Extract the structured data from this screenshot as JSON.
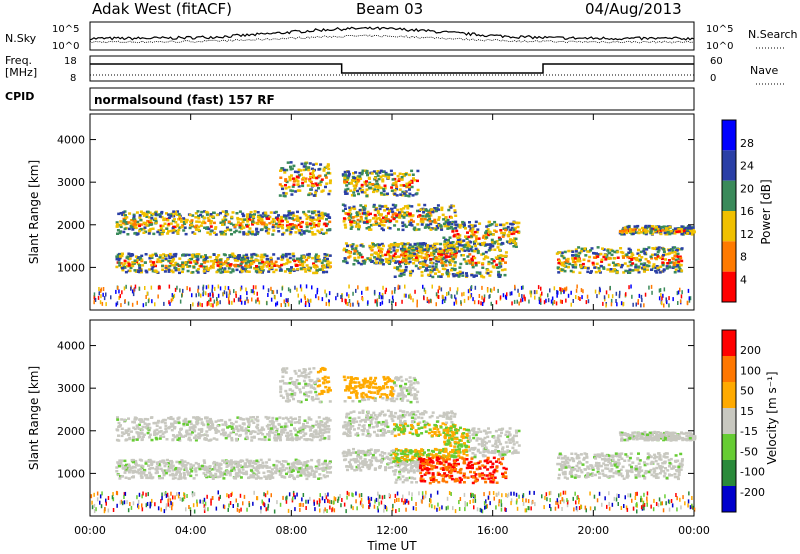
{
  "header": {
    "station": "Adak West (fitACF)",
    "beam": "Beam 03",
    "date": "04/Aug/2013"
  },
  "left_labels": {
    "nsky": "N.Sky",
    "freq": "Freq.",
    "freq_unit": "[MHz]",
    "cpid": "CPID"
  },
  "right_labels": {
    "nsearch": "N.Search",
    "nave": "Nave"
  },
  "cpid_text": "normalsound (fast) 157 RF",
  "colors": {
    "power": [
      "#0000ff",
      "#2a3fa6",
      "#3a8a5a",
      "#f0c000",
      "#ff7a00",
      "#ff0000"
    ],
    "velocity": [
      "#0000cc",
      "#2a8a3a",
      "#66cc33",
      "#c8c8c0",
      "#ffaa00",
      "#ff7700",
      "#ff0000"
    ]
  },
  "chart_data": [
    {
      "type": "line",
      "name": "noise-panel",
      "left_ticks": [
        "10^5",
        "10^0"
      ],
      "right_ticks": [
        "10^5",
        "10^0"
      ]
    },
    {
      "type": "line",
      "name": "freq-nave-panel",
      "left_ticks": [
        "18",
        "8"
      ],
      "right_ticks": [
        "60",
        "0"
      ],
      "freq_steps": [
        {
          "t0": 0.0,
          "t1": 10.0,
          "level": "high"
        },
        {
          "t0": 10.0,
          "t1": 18.0,
          "level": "low"
        },
        {
          "t0": 18.0,
          "t1": 24.0,
          "level": "high"
        }
      ]
    },
    {
      "type": "heatmap",
      "name": "power-panel",
      "ylabel": "Slant Range [km]",
      "yticks": [
        1000,
        2000,
        3000,
        4000
      ],
      "xlim": [
        0,
        24
      ],
      "colorbar_label": "Power [dB]",
      "colorbar_ticks": [
        "28",
        "24",
        "20",
        "16",
        "12",
        "8",
        "4"
      ]
    },
    {
      "type": "heatmap",
      "name": "velocity-panel",
      "ylabel": "Slant Range [km]",
      "yticks": [
        1000,
        2000,
        3000,
        4000
      ],
      "xlim": [
        0,
        24
      ],
      "xlabel": "Time UT",
      "xticks": [
        "00:00",
        "04:00",
        "08:00",
        "12:00",
        "16:00",
        "20:00",
        "00:00"
      ],
      "colorbar_label": "Velocity [m s⁻¹]",
      "colorbar_ticks": [
        "200",
        "100",
        "50",
        "15",
        "-15",
        "-50",
        "-100",
        "-200"
      ]
    }
  ]
}
